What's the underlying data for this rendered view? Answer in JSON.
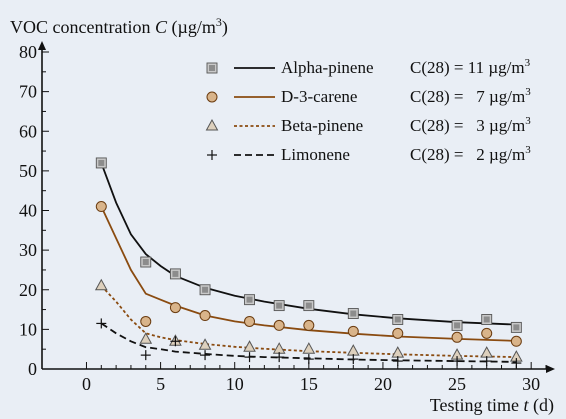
{
  "chart_data": {
    "type": "scatter",
    "ylabel_prefix": "VOC concentration",
    "ylabel_var": "C",
    "ylabel_unit_open": "(µg/m",
    "ylabel_unit_sup": "3",
    "ylabel_unit_close": ")",
    "xlabel_prefix": "Testing time",
    "xlabel_var": "t",
    "xlabel_unit": "(d)",
    "xlim": [
      -3,
      31
    ],
    "ylim": [
      0,
      80
    ],
    "xticks": [
      0,
      5,
      10,
      15,
      20,
      25,
      30
    ],
    "yticks": [
      0,
      10,
      20,
      30,
      40,
      50,
      60,
      70,
      80
    ],
    "grid": false,
    "legend_position": "top-right",
    "series": [
      {
        "name": "Alpha-pinene",
        "marker": "square",
        "line_style": "solid",
        "line_color": "#111111",
        "c28_text": "C(28) = 11 µg/m",
        "c28_sup": "3",
        "points": [
          [
            1,
            52
          ],
          [
            4,
            27
          ],
          [
            6,
            24
          ],
          [
            8,
            20
          ],
          [
            11,
            17.5
          ],
          [
            13,
            16
          ],
          [
            15,
            16
          ],
          [
            18,
            14
          ],
          [
            21,
            12.5
          ],
          [
            25,
            11
          ],
          [
            27,
            12.5
          ],
          [
            29,
            10.5
          ]
        ],
        "fit": [
          [
            1,
            52
          ],
          [
            2,
            42
          ],
          [
            3,
            34
          ],
          [
            4,
            29
          ],
          [
            5,
            26
          ],
          [
            6,
            23.5
          ],
          [
            8,
            20.5
          ],
          [
            10,
            18.5
          ],
          [
            12,
            17
          ],
          [
            15,
            15.2
          ],
          [
            18,
            13.8
          ],
          [
            21,
            12.8
          ],
          [
            25,
            11.8
          ],
          [
            29,
            11.2
          ]
        ]
      },
      {
        "name": "D-3-carene",
        "marker": "circle",
        "line_style": "solid",
        "line_color": "#8a4b10",
        "c28_text": "C(28) =   7 µg/m",
        "c28_sup": "3",
        "points": [
          [
            1,
            41
          ],
          [
            4,
            12
          ],
          [
            6,
            15.5
          ],
          [
            8,
            13.5
          ],
          [
            11,
            12
          ],
          [
            13,
            11
          ],
          [
            15,
            11
          ],
          [
            18,
            9.5
          ],
          [
            21,
            9
          ],
          [
            25,
            8
          ],
          [
            27,
            9
          ],
          [
            29,
            7
          ]
        ],
        "fit": [
          [
            1,
            41
          ],
          [
            2,
            33
          ],
          [
            3,
            25
          ],
          [
            4,
            19
          ],
          [
            5,
            17.5
          ],
          [
            6,
            16
          ],
          [
            8,
            13.5
          ],
          [
            10,
            12
          ],
          [
            12,
            11
          ],
          [
            15,
            9.8
          ],
          [
            18,
            8.9
          ],
          [
            21,
            8.2
          ],
          [
            25,
            7.6
          ],
          [
            29,
            7.1
          ]
        ]
      },
      {
        "name": "Beta-pinene",
        "marker": "triangle",
        "line_style": "dotted",
        "line_color": "#8a4b10",
        "c28_text": "C(28) =   3 µg/m",
        "c28_sup": "3",
        "points": [
          [
            1,
            21
          ],
          [
            4,
            7.5
          ],
          [
            6,
            7
          ],
          [
            8,
            6
          ],
          [
            11,
            5.5
          ],
          [
            13,
            5
          ],
          [
            15,
            5
          ],
          [
            18,
            4.5
          ],
          [
            21,
            4
          ],
          [
            25,
            3.5
          ],
          [
            27,
            4
          ],
          [
            29,
            3
          ]
        ],
        "fit": [
          [
            1,
            21
          ],
          [
            2,
            17
          ],
          [
            3,
            12.5
          ],
          [
            4,
            9
          ],
          [
            5,
            8
          ],
          [
            6,
            7.3
          ],
          [
            8,
            6.3
          ],
          [
            10,
            5.6
          ],
          [
            12,
            5.1
          ],
          [
            15,
            4.5
          ],
          [
            18,
            4.1
          ],
          [
            21,
            3.7
          ],
          [
            25,
            3.3
          ],
          [
            29,
            3
          ]
        ]
      },
      {
        "name": "Limonene",
        "marker": "plus",
        "line_style": "dashed",
        "line_color": "#111111",
        "c28_text": "C(28) =   2 µg/m",
        "c28_sup": "3",
        "points": [
          [
            1,
            11.5
          ],
          [
            4,
            3.5
          ],
          [
            6,
            7
          ],
          [
            8,
            3.5
          ],
          [
            11,
            3
          ],
          [
            13,
            3
          ],
          [
            15,
            2.5
          ],
          [
            18,
            2.5
          ],
          [
            21,
            2
          ],
          [
            25,
            2
          ],
          [
            27,
            2
          ],
          [
            29,
            1.5
          ]
        ],
        "fit": [
          [
            1,
            11.5
          ],
          [
            2,
            9
          ],
          [
            3,
            7
          ],
          [
            4,
            5.5
          ],
          [
            5,
            5
          ],
          [
            6,
            4.4
          ],
          [
            8,
            3.8
          ],
          [
            10,
            3.3
          ],
          [
            12,
            3
          ],
          [
            15,
            2.7
          ],
          [
            18,
            2.4
          ],
          [
            21,
            2.2
          ],
          [
            25,
            2
          ],
          [
            29,
            1.8
          ]
        ]
      }
    ]
  }
}
